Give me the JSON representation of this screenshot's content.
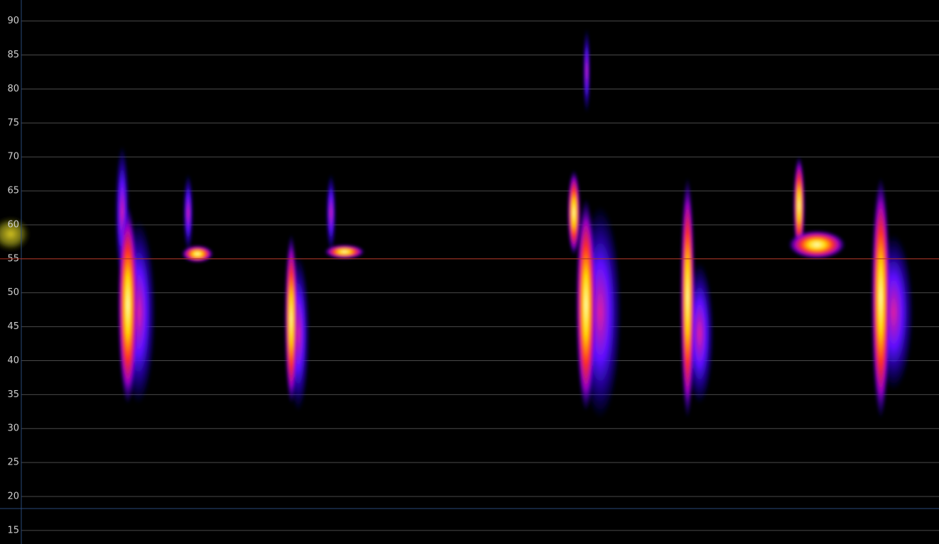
{
  "frequency_axis": {
    "ylim": [
      13,
      93.1
    ],
    "ticks": [
      15,
      20,
      25,
      30,
      35,
      40,
      45,
      50,
      55,
      60,
      65,
      70,
      75,
      80,
      85,
      90
    ]
  },
  "marker": 55
}
